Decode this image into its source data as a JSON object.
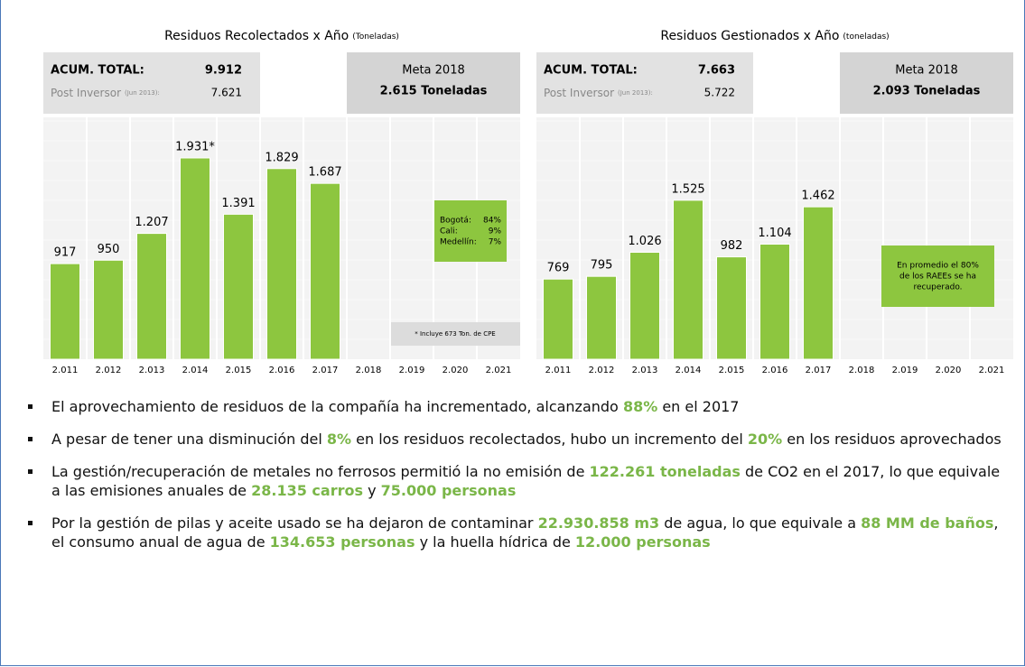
{
  "chart_data": [
    {
      "type": "bar",
      "title": "Residuos Recolectados x Año",
      "title_note": "(Toneladas)",
      "categories": [
        "2.011",
        "2.012",
        "2.013",
        "2.014",
        "2.015",
        "2.016",
        "2.017",
        "2.018",
        "2.019",
        "2.020",
        "2.021"
      ],
      "values": [
        917,
        950,
        1207,
        1931,
        1391,
        1829,
        1687,
        null,
        null,
        null,
        null
      ],
      "value_labels": [
        "917",
        "950",
        "1.207",
        "1.931*",
        "1.391",
        "1.829",
        "1.687",
        null,
        null,
        null,
        null
      ],
      "color": "#8dc63f",
      "acum_label": "ACUM. TOTAL:",
      "acum_value": "9.912",
      "post_label": "Post Inversor",
      "post_note": "(Jun 2013):",
      "post_value": "7.621",
      "goal_title": "Meta 2018",
      "goal_value": "2.615 Toneladas",
      "annotation": [
        [
          "Bogotá:",
          "84%"
        ],
        [
          "Cali:",
          "9%"
        ],
        [
          "Medellín:",
          "7%"
        ]
      ],
      "footnote": "* Incluye 673 Ton. de CPE"
    },
    {
      "type": "bar",
      "title": "Residuos Gestionados x Año",
      "title_note": "(toneladas)",
      "categories": [
        "2.011",
        "2.012",
        "2.013",
        "2.014",
        "2.015",
        "2.016",
        "2.017",
        "2.018",
        "2.019",
        "2.020",
        "2.021"
      ],
      "values": [
        769,
        795,
        1026,
        1525,
        982,
        1104,
        1462,
        null,
        null,
        null,
        null
      ],
      "value_labels": [
        "769",
        "795",
        "1.026",
        "1.525",
        "982",
        "1.104",
        "1.462",
        null,
        null,
        null,
        null
      ],
      "color": "#8dc63f",
      "acum_label": "ACUM. TOTAL:",
      "acum_value": "7.663",
      "post_label": "Post Inversor",
      "post_note": "(Jun 2013):",
      "post_value": "5.722",
      "goal_title": "Meta 2018",
      "goal_value": "2.093 Toneladas",
      "annotation": [
        "En promedio el 80%",
        "de los RAEEs se ha",
        "recuperado."
      ]
    }
  ],
  "bullets": [
    [
      "El aprovechamiento de residuos de la compañía ha incrementado, alcanzando ",
      "88%",
      " en el 2017"
    ],
    [
      "A pesar de tener una disminución del ",
      "8%",
      " en los residuos recolectados, hubo un incremento del ",
      "20%",
      " en los residuos aprovechados"
    ],
    [
      "La gestión/recuperación de metales no ferrosos permitió la no emisión de ",
      "122.261 toneladas",
      " de CO2 en el 2017, lo que equivale a las emisiones anuales de ",
      "28.135 carros",
      " y ",
      "75.000 personas"
    ],
    [
      "Por la gestión de pilas y aceite usado se ha dejaron de contaminar ",
      "22.930.858 m3",
      " de agua, lo que equivale a ",
      "88 MM de baños",
      ", el consumo anual de agua de ",
      "134.653 personas",
      " y la huella hídrica de ",
      "12.000 personas"
    ]
  ]
}
